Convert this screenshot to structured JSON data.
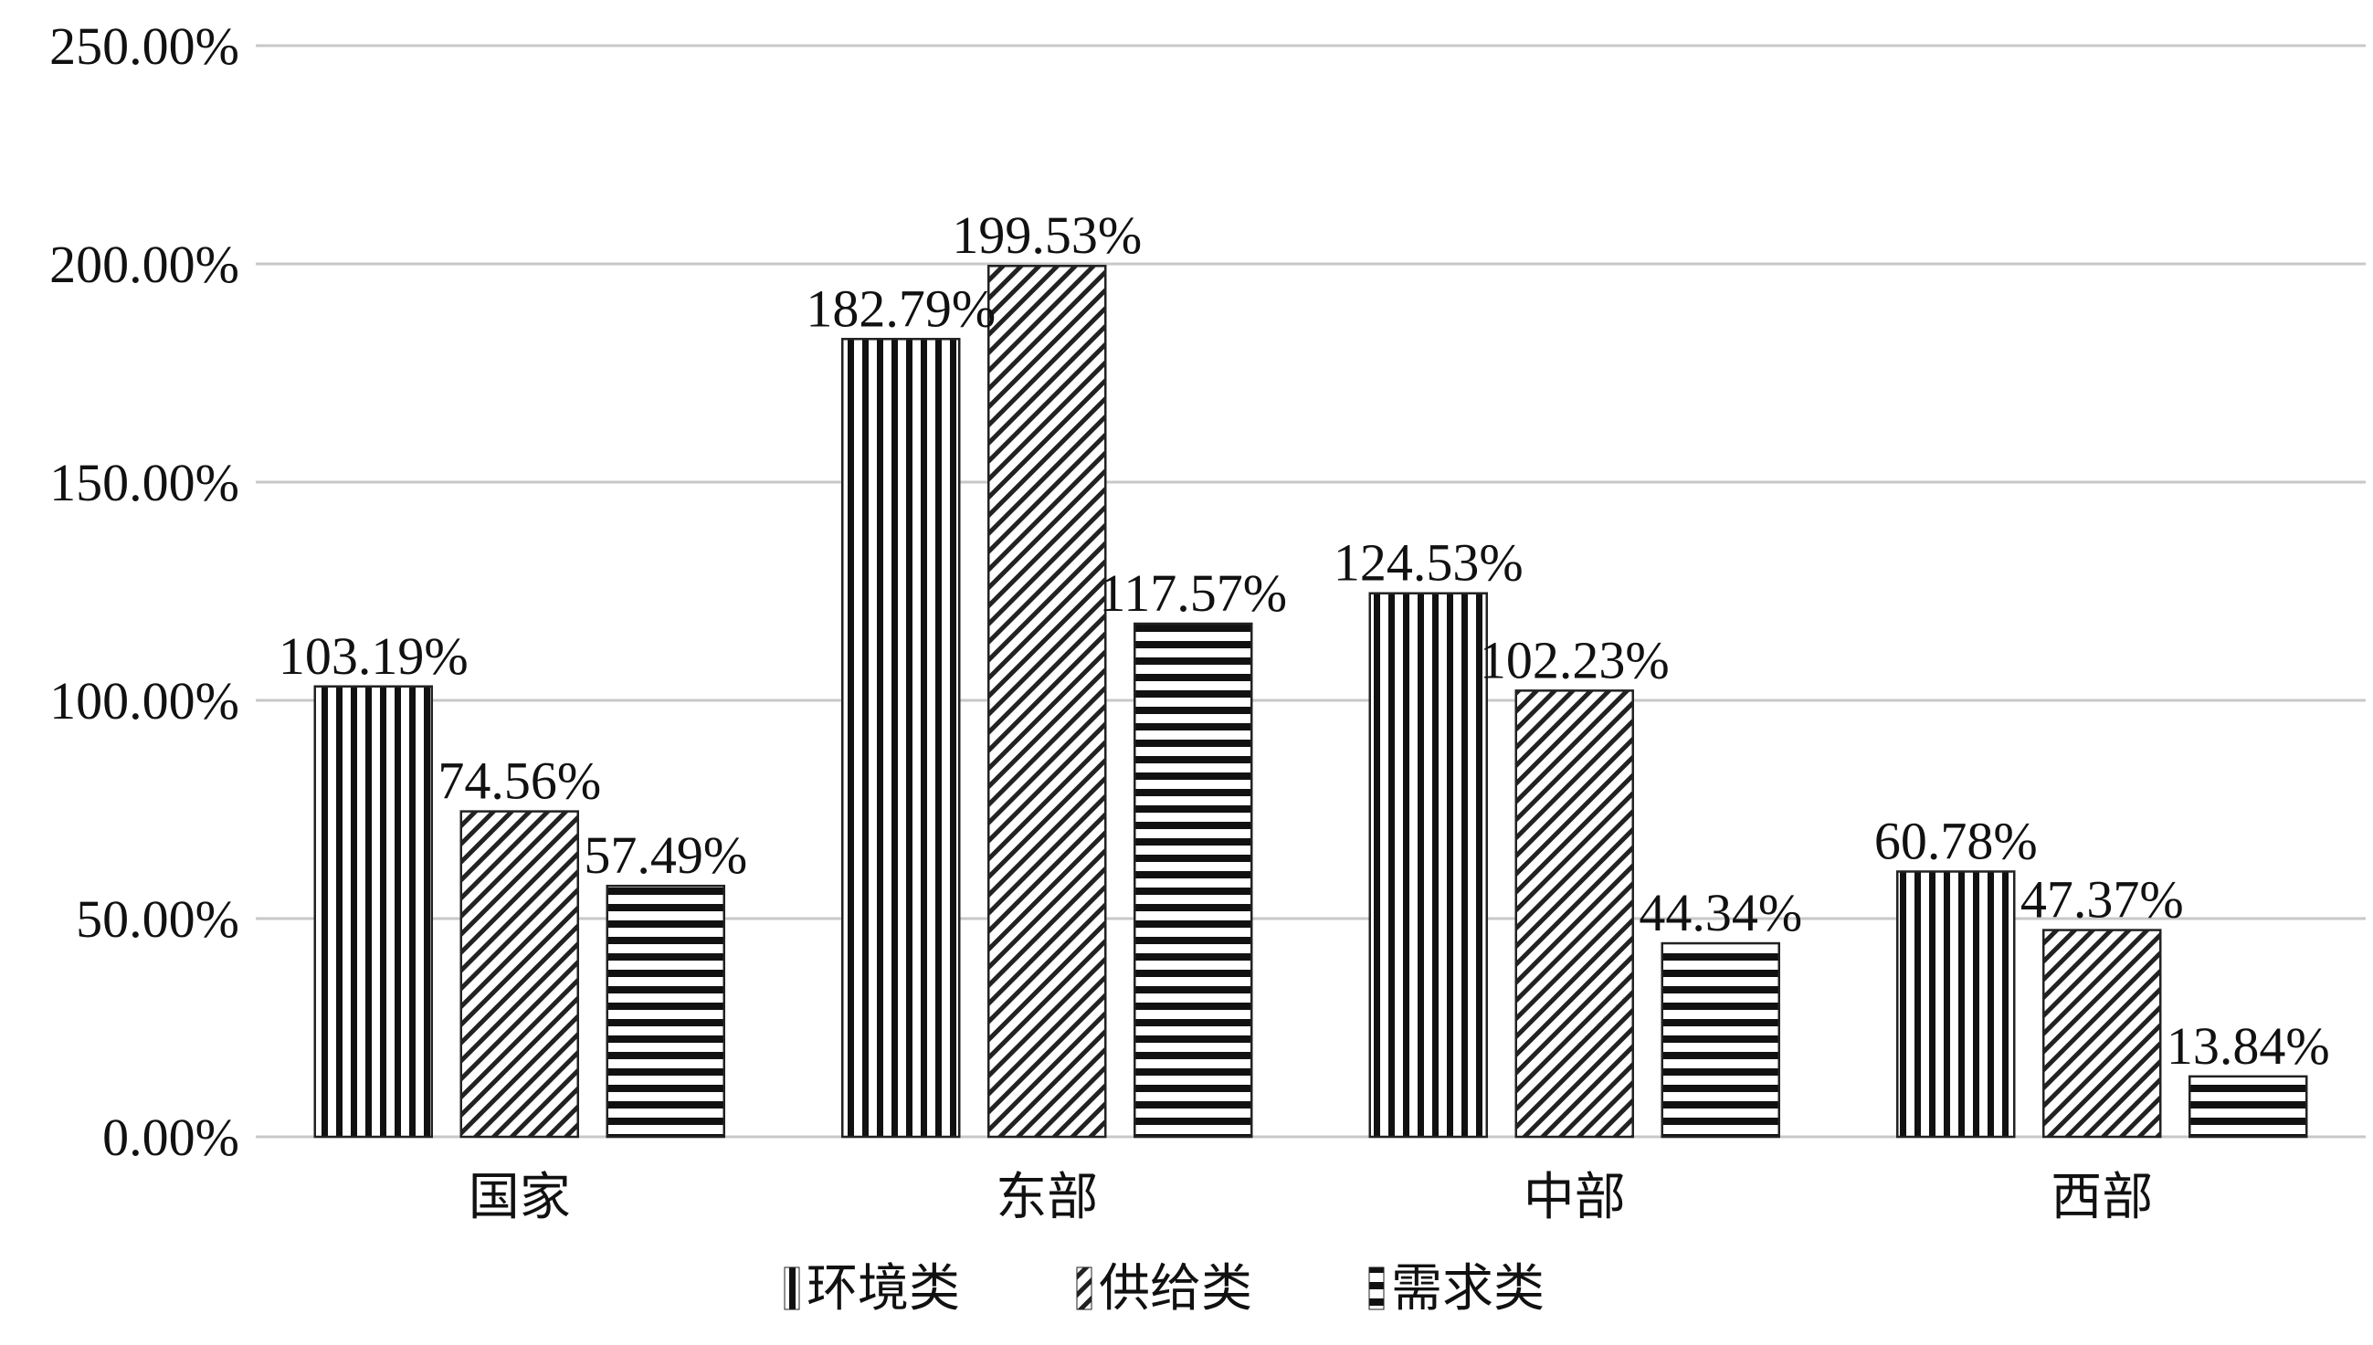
{
  "chart_data": {
    "type": "bar",
    "categories": [
      "国家",
      "东部",
      "中部",
      "西部"
    ],
    "series": [
      {
        "name": "环境类",
        "pattern": "vertical",
        "values": [
          103.19,
          182.79,
          124.53,
          60.78
        ]
      },
      {
        "name": "供给类",
        "pattern": "diagonal",
        "values": [
          74.56,
          199.53,
          102.23,
          47.37
        ]
      },
      {
        "name": "需求类",
        "pattern": "horizontal",
        "values": [
          57.49,
          117.57,
          44.34,
          13.84
        ]
      }
    ],
    "value_labels": [
      [
        "103.19%",
        "182.79%",
        "124.53%",
        "60.78%"
      ],
      [
        "74.56%",
        "199.53%",
        "102.23%",
        "47.37%"
      ],
      [
        "57.49%",
        "117.57%",
        "44.34%",
        "13.84%"
      ]
    ],
    "yticks": [
      0,
      50,
      100,
      150,
      200,
      250
    ],
    "ytick_labels": [
      "0.00%",
      "50.00%",
      "100.00%",
      "150.00%",
      "200.00%",
      "250.00%"
    ],
    "ylim": [
      0,
      250
    ],
    "grid": true,
    "legend_position": "bottom",
    "title": "",
    "xlabel": "",
    "ylabel": ""
  }
}
